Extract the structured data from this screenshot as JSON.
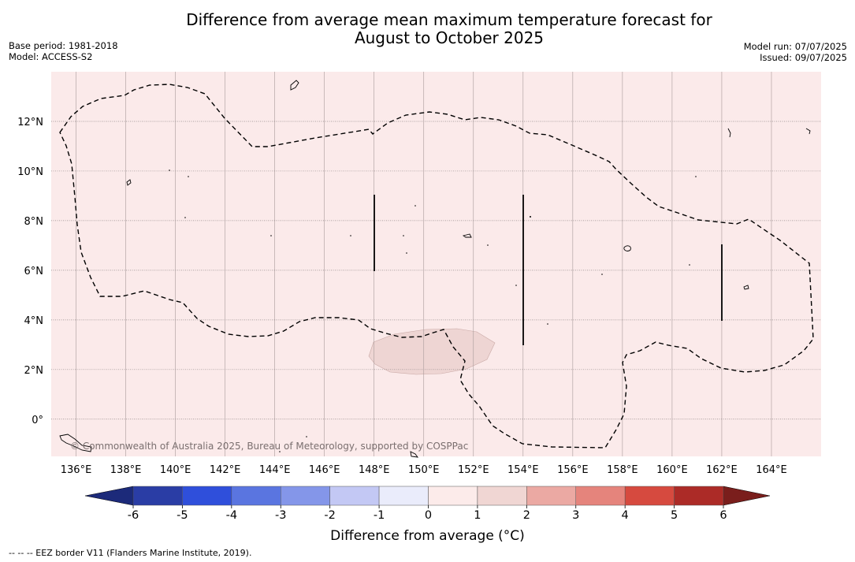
{
  "header": {
    "title_line1": "Difference from average mean maximum temperature forecast for",
    "title_line2": "August to October 2025",
    "base_period": "Base period: 1981-2018",
    "model": "Model: ACCESS-S2",
    "model_run": "Model run: 07/07/2025",
    "issued": "Issued: 09/07/2025"
  },
  "map": {
    "background_color": "#fbeaea",
    "anomaly_patch_color": "#eed5d3",
    "lon_ticks": [
      "136°E",
      "138°E",
      "140°E",
      "142°E",
      "144°E",
      "146°E",
      "148°E",
      "150°E",
      "152°E",
      "154°E",
      "156°E",
      "158°E",
      "160°E",
      "162°E",
      "164°E"
    ],
    "lat_ticks": [
      "12°N",
      "10°N",
      "8°N",
      "6°N",
      "4°N",
      "2°N",
      "0°"
    ],
    "copyright": "© Commonwealth of Australia 2025, Bureau of Meteorology, supported by COSPPac"
  },
  "colorbar": {
    "labels": [
      "-6",
      "-5",
      "-4",
      "-3",
      "-2",
      "-1",
      "0",
      "1",
      "2",
      "3",
      "4",
      "5",
      "6"
    ],
    "colors": [
      "#2a3da5",
      "#2f4fdb",
      "#5a75e0",
      "#8496e9",
      "#c3c8f4",
      "#eaecfb",
      "#fcebea",
      "#f0d6d3",
      "#eba9a3",
      "#e5847c",
      "#d64a3f",
      "#ac2b27"
    ],
    "low_extend_color": "#1c2a7a",
    "high_extend_color": "#7a1e1c",
    "title": "Difference from average (°C)"
  },
  "footer": {
    "eez_note": "--  --  -- EEZ border V11 (Flanders Marine Institute, 2019)."
  }
}
